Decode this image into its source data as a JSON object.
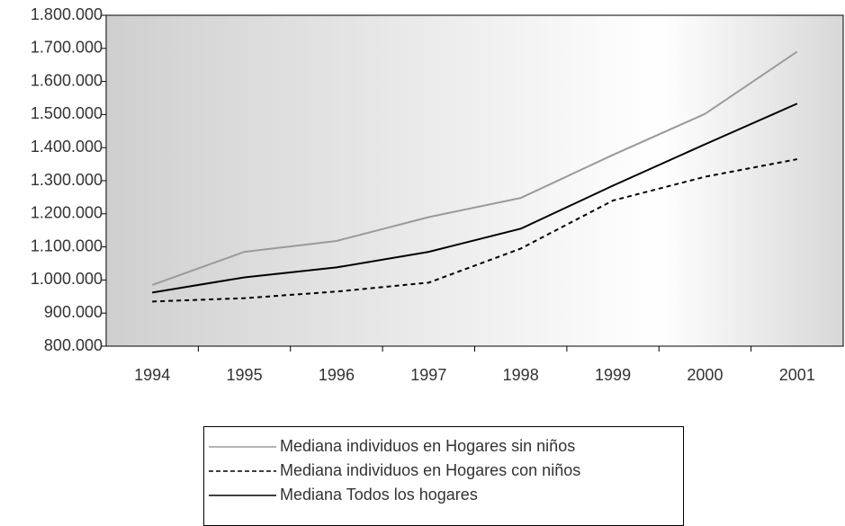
{
  "chart_data": {
    "type": "line",
    "categories": [
      "1994",
      "1995",
      "1996",
      "1997",
      "1998",
      "1999",
      "2000",
      "2001"
    ],
    "series": [
      {
        "name": "Mediana individuos en Hogares sin niños",
        "color": "#9a9a9a",
        "style": "solid",
        "values": [
          985000,
          1085000,
          1118000,
          1190000,
          1248000,
          1378000,
          1502000,
          1690000
        ]
      },
      {
        "name": "Mediana individuos en Hogares con niños",
        "color": "#000000",
        "style": "dashed",
        "values": [
          935000,
          945000,
          965000,
          992000,
          1095000,
          1240000,
          1312000,
          1365000
        ]
      },
      {
        "name": "Mediana Todos los hogares",
        "color": "#000000",
        "style": "solid",
        "values": [
          962000,
          1008000,
          1038000,
          1085000,
          1155000,
          1285000,
          1410000,
          1533000
        ]
      }
    ],
    "ylim": [
      800000,
      1800000
    ],
    "yticks": [
      {
        "value": 800000,
        "label": "800.000"
      },
      {
        "value": 900000,
        "label": "900.000"
      },
      {
        "value": 1000000,
        "label": "1.000.000"
      },
      {
        "value": 1100000,
        "label": "1.100.000"
      },
      {
        "value": 1200000,
        "label": "1.200.000"
      },
      {
        "value": 1300000,
        "label": "1.300.000"
      },
      {
        "value": 1400000,
        "label": "1.400.000"
      },
      {
        "value": 1500000,
        "label": "1.500.000"
      },
      {
        "value": 1600000,
        "label": "1.600.000"
      },
      {
        "value": 1700000,
        "label": "1.700.000"
      },
      {
        "value": 1800000,
        "label": "1.800.000"
      }
    ],
    "legend": "bottom"
  }
}
